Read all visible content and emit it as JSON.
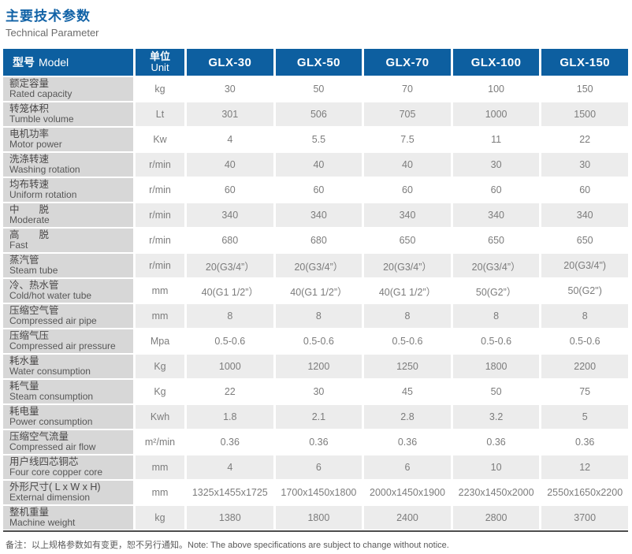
{
  "page": {
    "title_cn": "主要技术参数",
    "title_en": "Technical Parameter",
    "footnote": "备注：以上规格参数如有变更，恕不另行通知。Note: The above specifications are subject to change without notice."
  },
  "colors": {
    "header_bg": "#0d5fa0",
    "title_blue": "#1162a6",
    "label_bg": "#d7d7d7",
    "stripe_bg": "#ececec",
    "bottom_border": "#4d4d4d"
  },
  "table": {
    "header": {
      "model_cn": "型号",
      "model_en": "Model",
      "unit_cn": "单位",
      "unit_en": "Unit",
      "models": [
        "GLX-30",
        "GLX-50",
        "GLX-70",
        "GLX-100",
        "GLX-150"
      ]
    },
    "rows": [
      {
        "cn": "额定容量",
        "en": "Rated capacity",
        "unit": "kg",
        "values": [
          "30",
          "50",
          "70",
          "100",
          "150"
        ]
      },
      {
        "cn": "转笼体积",
        "en": "Tumble volume",
        "unit": "Lt",
        "values": [
          "301",
          "506",
          "705",
          "1000",
          "1500"
        ]
      },
      {
        "cn": "电机功率",
        "en": "Motor power",
        "unit": "Kw",
        "values": [
          "4",
          "5.5",
          "7.5",
          "11",
          "22"
        ]
      },
      {
        "cn": "洗涤转速",
        "en": "Washing rotation",
        "unit": "r/min",
        "values": [
          "40",
          "40",
          "40",
          "30",
          "30"
        ]
      },
      {
        "cn": "均布转速",
        "en": "Uniform rotation",
        "unit": "r/min",
        "values": [
          "60",
          "60",
          "60",
          "60",
          "60"
        ]
      },
      {
        "cn": "中　　脱",
        "en": "Moderate",
        "unit": "r/min",
        "values": [
          "340",
          "340",
          "340",
          "340",
          "340"
        ]
      },
      {
        "cn": "高　　脱",
        "en": "Fast",
        "unit": "r/min",
        "values": [
          "680",
          "680",
          "650",
          "650",
          "650"
        ]
      },
      {
        "cn": "蒸汽管",
        "en": "Steam tube",
        "unit": "r/min",
        "values": [
          "20(G3/4”）",
          "20(G3/4”）",
          "20(G3/4”）",
          "20(G3/4”）",
          "20(G3/4\")"
        ]
      },
      {
        "cn": "冷、热水管",
        "en": "Cold/hot  water tube",
        "unit": "mm",
        "values": [
          "40(G1 1/2”）",
          "40(G1 1/2”）",
          "40(G1 1/2”）",
          "50(G2”）",
          "50(G2\")"
        ]
      },
      {
        "cn": "压缩空气管",
        "en": "Compressed air pipe",
        "unit": "mm",
        "values": [
          "8",
          "8",
          "8",
          "8",
          "8"
        ]
      },
      {
        "cn": "压缩气压",
        "en": "Compressed air pressure",
        "unit": "Mpa",
        "values": [
          "0.5-0.6",
          "0.5-0.6",
          "0.5-0.6",
          "0.5-0.6",
          "0.5-0.6"
        ]
      },
      {
        "cn": "耗水量",
        "en": "Water consumption",
        "unit": "Kg",
        "values": [
          "1000",
          "1200",
          "1250",
          "1800",
          "2200"
        ]
      },
      {
        "cn": "耗气量",
        "en": "Steam consumption",
        "unit": "Kg",
        "values": [
          "22",
          "30",
          "45",
          "50",
          "75"
        ]
      },
      {
        "cn": "耗电量",
        "en": "Power consumption",
        "unit": "Kwh",
        "values": [
          "1.8",
          "2.1",
          "2.8",
          "3.2",
          "5"
        ]
      },
      {
        "cn": "压缩空气流量",
        "en": "Compressed air flow",
        "unit": "m²/min",
        "values": [
          "0.36",
          "0.36",
          "0.36",
          "0.36",
          "0.36"
        ]
      },
      {
        "cn": "用户线四芯铜芯",
        "en": "Four core copper core",
        "unit": "mm",
        "values": [
          "4",
          "6",
          "6",
          "10",
          "12"
        ]
      },
      {
        "cn": "外形尺寸( L x W x H)",
        "en": "External dimension",
        "unit": "mm",
        "values": [
          "1325x1455x1725",
          "1700x1450x1800",
          "2000x1450x1900",
          "2230x1450x2000",
          "2550x1650x2200"
        ]
      },
      {
        "cn": "整机重量",
        "en": "Machine weight",
        "unit": "kg",
        "values": [
          "1380",
          "1800",
          "2400",
          "2800",
          "3700"
        ]
      }
    ]
  }
}
